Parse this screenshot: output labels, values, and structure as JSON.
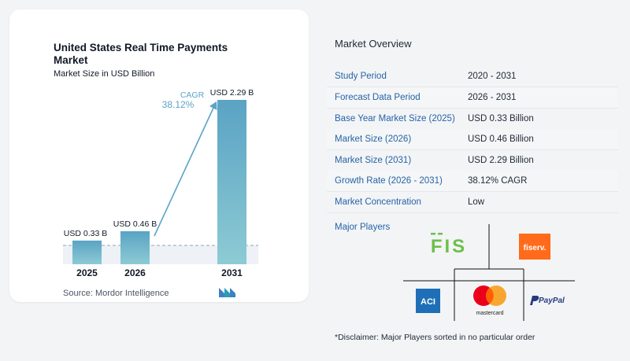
{
  "chart": {
    "title": "United States Real Time Payments Market",
    "subtitle": "Market Size in USD Billion",
    "cagr_label": "CAGR",
    "cagr_value": "38.12%",
    "source": "Source:  Mordor Intelligence"
  },
  "chart_data": {
    "type": "bar",
    "title": "United States Real Time Payments Market",
    "subtitle": "Market Size in USD Billion",
    "categories": [
      "2025",
      "2026",
      "2031"
    ],
    "values": [
      0.33,
      0.46,
      2.29
    ],
    "data_labels": [
      "USD 0.33 B",
      "USD 0.46 B",
      "USD 2.29 B"
    ],
    "annotation": "CAGR 38.12%",
    "unit": "USD Billion",
    "colors": {
      "bar_top": "#5aa3c4",
      "bar_bottom": "#8dcbd4",
      "accent": "#5ba3c7"
    }
  },
  "overview": {
    "title": "Market Overview",
    "rows": [
      {
        "label": "Study Period",
        "value": "2020 - 2031"
      },
      {
        "label": "Forecast Data Period",
        "value": "2026 - 2031"
      },
      {
        "label": "Base Year Market Size (2025)",
        "value": "USD 0.33 Billion"
      },
      {
        "label": "Market Size (2026)",
        "value": "USD 0.46 Billion"
      },
      {
        "label": "Market Size (2031)",
        "value": "USD 2.29 Billion"
      },
      {
        "label": "Growth Rate (2026 - 2031)",
        "value": "38.12% CAGR"
      },
      {
        "label": "Market Concentration",
        "value": "Low"
      }
    ]
  },
  "players": {
    "title": "Major Players",
    "logos": [
      "FIS",
      "fiserv.",
      "ACI",
      "mastercard",
      "PayPal"
    ],
    "disclaimer": "*Disclaimer: Major Players sorted in no particular order"
  },
  "colors": {
    "label_blue": "#2563a8",
    "fis_green": "#6cc04a",
    "fiserv_orange": "#ff6b1a",
    "aci_blue": "#1e6fb7",
    "paypal_navy": "#253b80",
    "paypal_light": "#179bd7"
  }
}
